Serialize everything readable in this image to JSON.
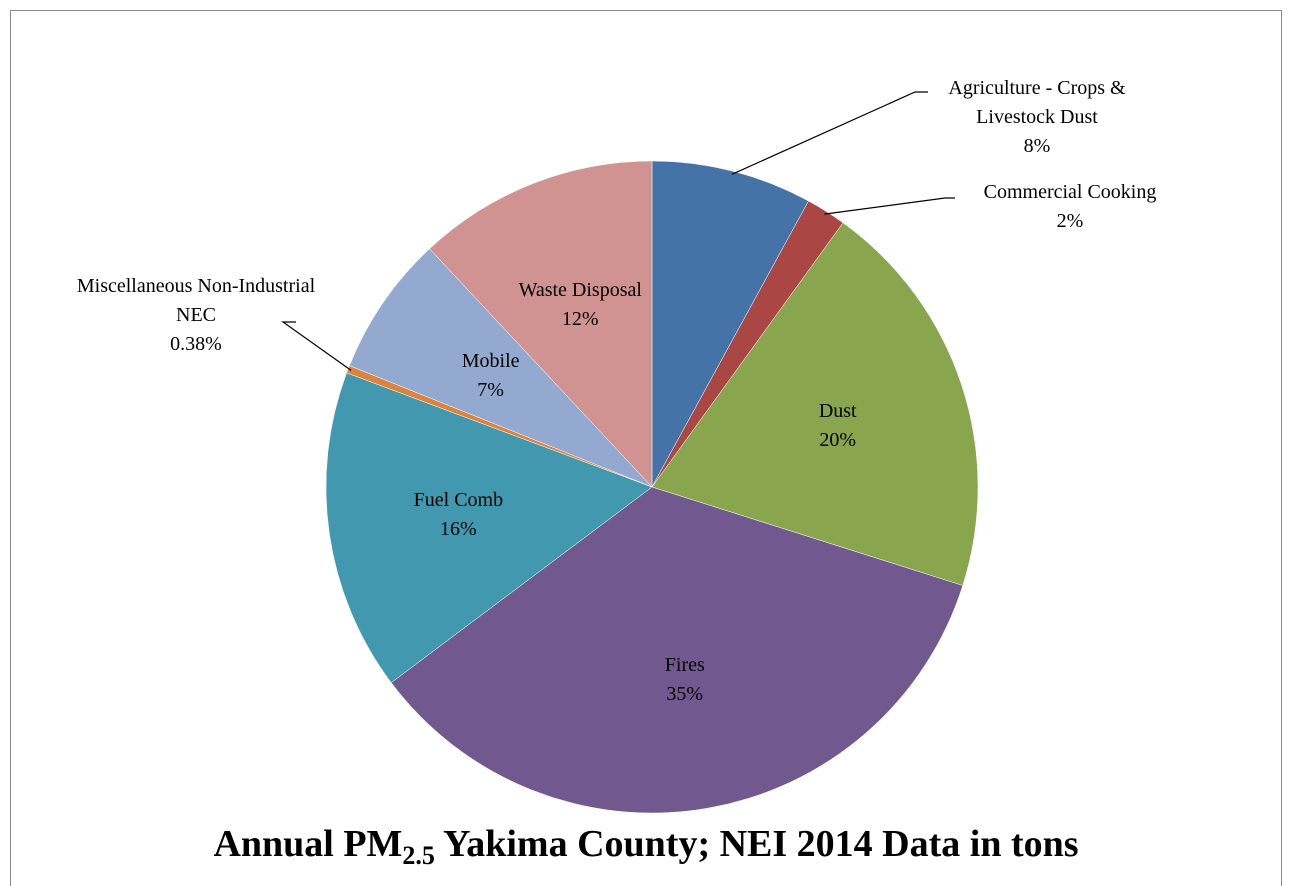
{
  "chart_data": {
    "type": "pie",
    "title": {
      "text": "Annual PM",
      "subscript": "2.5",
      "rest": " Yakima County; NEI 2014 Data  in tons"
    },
    "categories": [
      "Agriculture - Crops & Livestock Dust",
      "Commercial Cooking",
      "Dust",
      "Fires",
      "Fuel Comb",
      "Miscellaneous Non-Industrial NEC",
      "Mobile",
      "Waste Disposal"
    ],
    "values": [
      8,
      2,
      20,
      35,
      16,
      0.38,
      7,
      12
    ],
    "value_labels": [
      "8%",
      "2%",
      "20%",
      "35%",
      "16%",
      "0.38%",
      "7%",
      "12%"
    ],
    "colors": [
      "#4572a7",
      "#aa4643",
      "#89a54e",
      "#71588f",
      "#4198af",
      "#db843d",
      "#93a9cf",
      "#d19392"
    ]
  }
}
